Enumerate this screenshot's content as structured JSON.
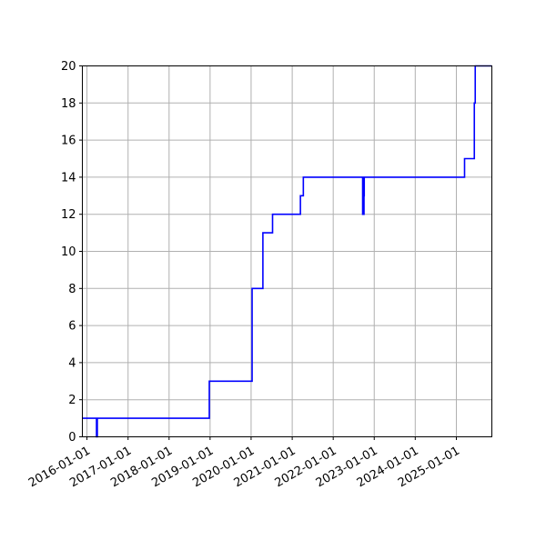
{
  "chart_data": {
    "type": "line",
    "style": "step-post",
    "title": "",
    "xlabel": "",
    "ylabel": "",
    "xlim": [
      "2015-11-21",
      "2025-11-13"
    ],
    "ylim": [
      0,
      20
    ],
    "grid": true,
    "line_color": "#0000ff",
    "x_ticks": [
      "2016-01-01",
      "2017-01-01",
      "2018-01-01",
      "2019-01-01",
      "2020-01-01",
      "2021-01-01",
      "2022-01-01",
      "2023-01-01",
      "2024-01-01",
      "2025-01-01"
    ],
    "y_ticks": [
      0,
      2,
      4,
      6,
      8,
      10,
      12,
      14,
      16,
      18,
      20
    ],
    "series": [
      {
        "points": [
          [
            "2015-11-21",
            1
          ],
          [
            "2016-03-26",
            0
          ],
          [
            "2016-03-27",
            1
          ],
          [
            "2016-03-29",
            0
          ],
          [
            "2016-03-30",
            1
          ],
          [
            "2016-04-01",
            0
          ],
          [
            "2016-04-02",
            1
          ],
          [
            "2018-12-25",
            3
          ],
          [
            "2020-01-10",
            8
          ],
          [
            "2020-04-15",
            11
          ],
          [
            "2020-07-10",
            12
          ],
          [
            "2021-03-15",
            13
          ],
          [
            "2021-04-10",
            14
          ],
          [
            "2022-09-20",
            12
          ],
          [
            "2022-09-22",
            14
          ],
          [
            "2022-09-25",
            12
          ],
          [
            "2022-09-27",
            14
          ],
          [
            "2022-09-30",
            12
          ],
          [
            "2022-10-02",
            13
          ],
          [
            "2022-10-04",
            14
          ],
          [
            "2025-03-15",
            15
          ],
          [
            "2025-06-10",
            18
          ],
          [
            "2025-06-18",
            20
          ]
        ]
      }
    ]
  }
}
